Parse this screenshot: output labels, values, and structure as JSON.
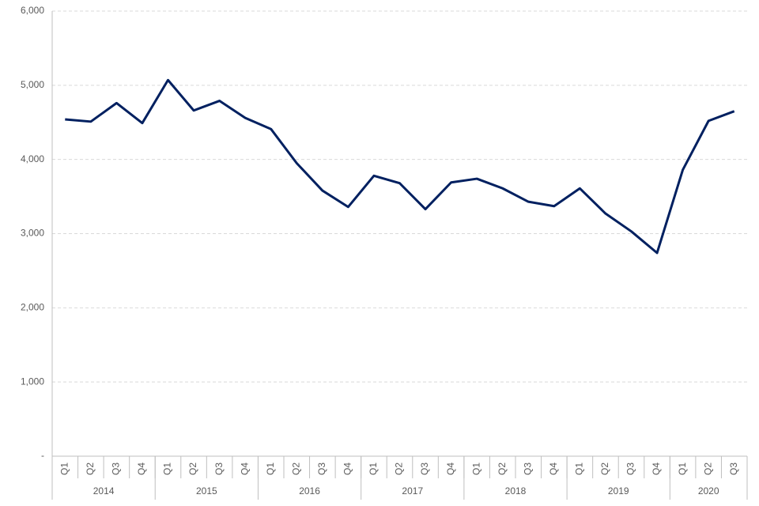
{
  "chart_data": {
    "type": "line",
    "categories": [
      "Q1",
      "Q2",
      "Q3",
      "Q4",
      "Q1",
      "Q2",
      "Q3",
      "Q4",
      "Q1",
      "Q2",
      "Q3",
      "Q4",
      "Q1",
      "Q2",
      "Q3",
      "Q4",
      "Q1",
      "Q2",
      "Q3",
      "Q4",
      "Q1",
      "Q2",
      "Q3",
      "Q4",
      "Q1",
      "Q2",
      "Q3"
    ],
    "years": [
      "2014",
      "2015",
      "2016",
      "2017",
      "2018",
      "2019",
      "2020"
    ],
    "series": [
      {
        "color": "#002060",
        "values": [
          4540,
          4510,
          4760,
          4490,
          5070,
          4660,
          4790,
          4560,
          4410,
          3950,
          3580,
          3360,
          3780,
          3680,
          3330,
          3690,
          3740,
          3610,
          3430,
          3370,
          3610,
          3270,
          3030,
          2740,
          3860,
          4520,
          4650
        ]
      }
    ],
    "ylim": [
      0,
      6000
    ],
    "yticks": [
      {
        "value": 0,
        "label": "-"
      },
      {
        "value": 1000,
        "label": "1,000"
      },
      {
        "value": 2000,
        "label": "2,000"
      },
      {
        "value": 3000,
        "label": "3,000"
      },
      {
        "value": 4000,
        "label": "4,000"
      },
      {
        "value": 5000,
        "label": "5,000"
      },
      {
        "value": 6000,
        "label": "6,000"
      }
    ],
    "grid": true
  }
}
